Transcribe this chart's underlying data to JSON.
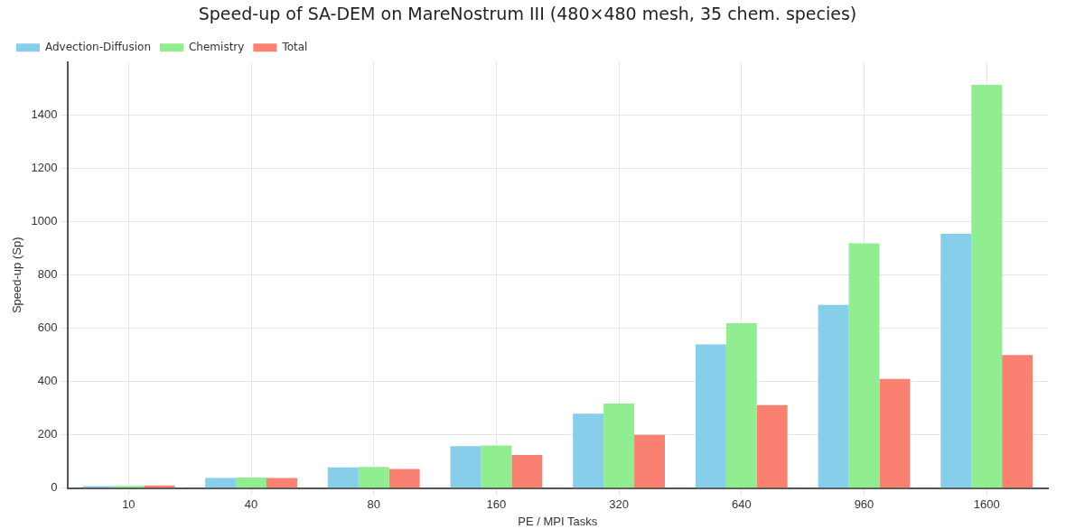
{
  "chart_data": {
    "type": "bar",
    "title": "Speed-up of SA-DEM on MareNostrum III (480×480 mesh, 35 chem. species)",
    "xlabel": "PE / MPI Tasks",
    "ylabel": "Speed-up (Sp)",
    "categories": [
      "10",
      "40",
      "80",
      "160",
      "320",
      "640",
      "960",
      "1600"
    ],
    "series": [
      {
        "name": "Advection-Diffusion",
        "color": "#87ceeb",
        "values": [
          8,
          38,
          78,
          158,
          280,
          540,
          688,
          955
        ]
      },
      {
        "name": "Chemistry",
        "color": "#90ee90",
        "values": [
          9,
          40,
          80,
          160,
          318,
          620,
          920,
          1515
        ]
      },
      {
        "name": "Total",
        "color": "#fa8072",
        "values": [
          10,
          38,
          72,
          125,
          200,
          312,
          410,
          500
        ]
      }
    ],
    "ylim": [
      0,
      1600
    ],
    "yticks": [
      0,
      200,
      400,
      600,
      800,
      1000,
      1200,
      1400
    ],
    "grid": true,
    "legend": "top left"
  }
}
